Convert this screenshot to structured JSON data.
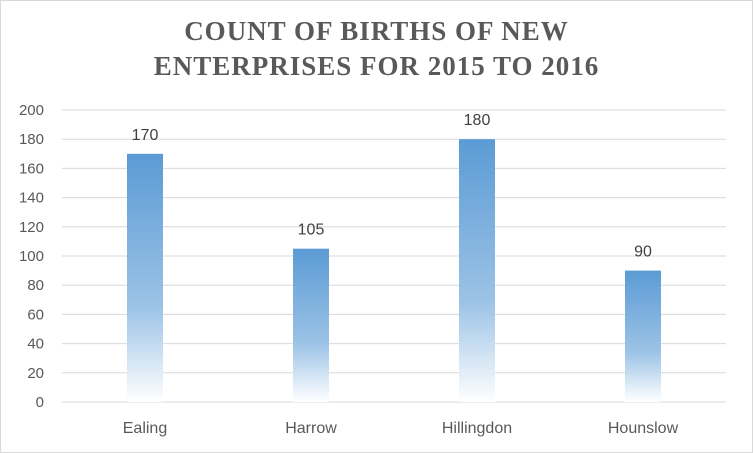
{
  "chart_data": {
    "type": "bar",
    "title_lines": [
      "COUNT OF BIRTHS OF NEW",
      "ENTERPRISES  FOR 2015 TO 2016"
    ],
    "categories": [
      "Ealing",
      "Harrow",
      "Hillingdon",
      "Hounslow"
    ],
    "values": [
      170,
      105,
      180,
      90
    ],
    "data_labels": [
      "170",
      "105",
      "180",
      "90"
    ],
    "yticks": [
      "0",
      "20",
      "40",
      "60",
      "80",
      "100",
      "120",
      "140",
      "160",
      "180",
      "200"
    ],
    "ylim": [
      0,
      200
    ],
    "grid": true,
    "legend": "none",
    "bar_color_top": "#5b9bd5",
    "bar_color_bottom": "#ffffff"
  }
}
